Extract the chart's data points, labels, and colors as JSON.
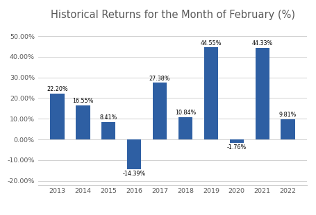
{
  "title": "Historical Returns for the Month of February (%)",
  "categories": [
    "2013",
    "2014",
    "2015",
    "2016",
    "2017",
    "2018",
    "2019",
    "2020",
    "2021",
    "2022"
  ],
  "values": [
    22.2,
    16.55,
    8.41,
    -14.39,
    27.38,
    10.84,
    44.55,
    -1.76,
    44.33,
    9.81
  ],
  "labels": [
    "22.20%",
    "16.55%",
    "8.41%",
    "-14.39%",
    "27.38%",
    "10.84%",
    "44.55%",
    "-1.76%",
    "44.33%",
    "9.81%"
  ],
  "bar_color": "#2E5FA3",
  "ylim": [
    -22,
    55
  ],
  "yticks": [
    -20,
    -10,
    0,
    10,
    20,
    30,
    40,
    50
  ],
  "ytick_labels": [
    "-20.00%",
    "-10.00%",
    "0.00%",
    "10.00%",
    "20.00%",
    "30.00%",
    "40.00%",
    "50.00%"
  ],
  "background_color": "#ffffff",
  "title_fontsize": 10.5,
  "label_fontsize": 5.8,
  "tick_fontsize": 6.8,
  "title_color": "#595959"
}
